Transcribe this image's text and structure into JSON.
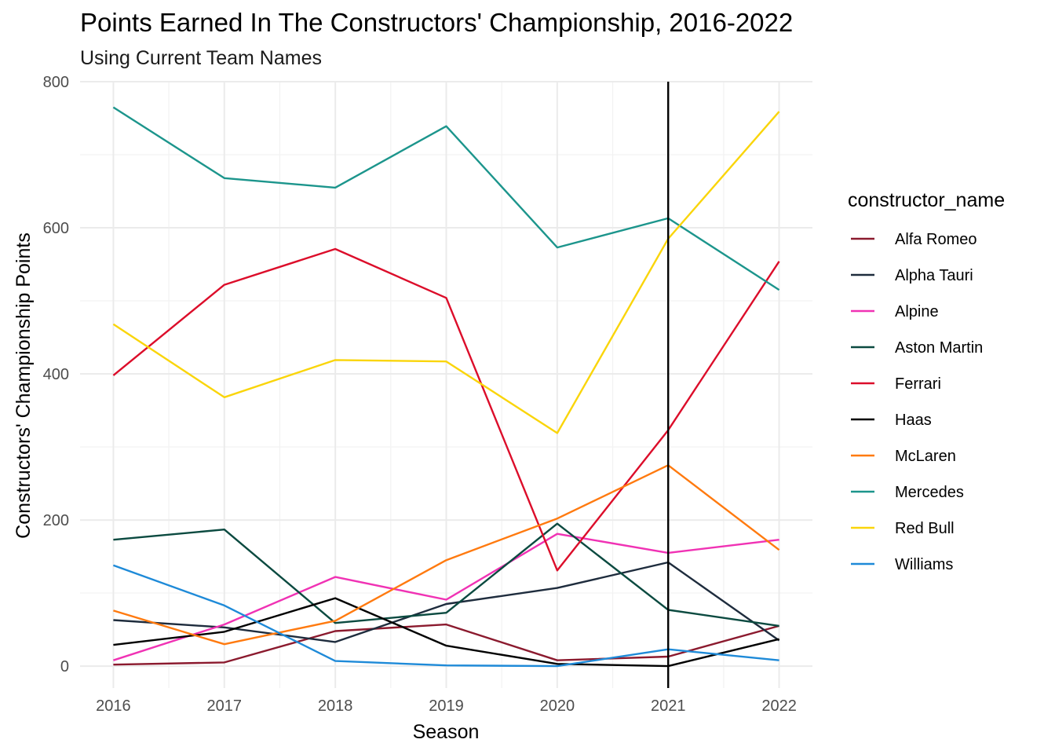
{
  "chart_data": {
    "type": "line",
    "title": "Points Earned In The Constructors' Championship, 2016-2022",
    "subtitle": "Using Current Team Names",
    "xlabel": "Season",
    "ylabel": "Constructors' Championship Points",
    "x": [
      2016,
      2017,
      2018,
      2019,
      2020,
      2021,
      2022
    ],
    "xlim": [
      2015.7,
      2022.3
    ],
    "ylim": [
      -30,
      800
    ],
    "yticks": [
      0,
      200,
      400,
      600,
      800
    ],
    "grid": true,
    "legend_title": "constructor_name",
    "legend_position": "right",
    "vline": {
      "x": 2021,
      "color": "#000000"
    },
    "series": [
      {
        "name": "Alfa Romeo",
        "color": "#8b1a2e",
        "values": [
          2,
          5,
          48,
          57,
          8,
          13,
          55
        ]
      },
      {
        "name": "Alpha Tauri",
        "color": "#1e2c3d",
        "values": [
          63,
          53,
          33,
          85,
          107,
          142,
          35
        ]
      },
      {
        "name": "Alpine",
        "color": "#f032b4",
        "values": [
          8,
          57,
          122,
          91,
          181,
          155,
          173
        ]
      },
      {
        "name": "Aston Martin",
        "color": "#0b4a40",
        "values": [
          173,
          187,
          59,
          73,
          195,
          77,
          55
        ]
      },
      {
        "name": "Ferrari",
        "color": "#dc0d2a",
        "values": [
          398,
          522,
          571,
          504,
          131,
          323,
          554
        ]
      },
      {
        "name": "Haas",
        "color": "#000000",
        "values": [
          29,
          47,
          93,
          28,
          3,
          0,
          37
        ]
      },
      {
        "name": "McLaren",
        "color": "#ff7a0f",
        "values": [
          76,
          30,
          62,
          145,
          202,
          275,
          159
        ]
      },
      {
        "name": "Mercedes",
        "color": "#1c958c",
        "values": [
          765,
          668,
          655,
          739,
          573,
          613,
          515
        ]
      },
      {
        "name": "Red Bull",
        "color": "#fad50a",
        "values": [
          468,
          368,
          419,
          417,
          319,
          585,
          759
        ]
      },
      {
        "name": "Williams",
        "color": "#1e8ad8",
        "values": [
          138,
          83,
          7,
          1,
          0,
          23,
          8
        ]
      }
    ]
  }
}
